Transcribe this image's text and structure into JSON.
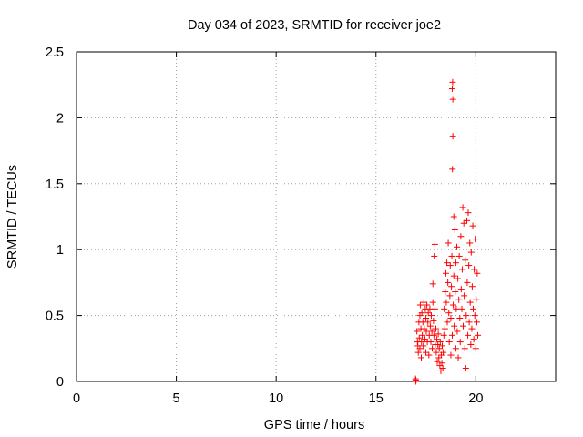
{
  "chart_data": {
    "type": "scatter",
    "title": "Day 034 of 2023, SRMTID for receiver joe2",
    "xlabel": "GPS time / hours",
    "ylabel": "SRMTID / TECUs",
    "xlim": [
      0,
      24
    ],
    "ylim": [
      0,
      2.5
    ],
    "xticks": [
      0,
      5,
      10,
      15,
      20
    ],
    "yticks": [
      0,
      0.5,
      1,
      1.5,
      2,
      2.5
    ],
    "xtick_labels": [
      "0",
      "5",
      "10",
      "15",
      "20"
    ],
    "ytick_labels": [
      "0",
      "0.5",
      "1",
      "1.5",
      "2",
      "2.5"
    ],
    "grid": true,
    "marker": "+",
    "color": "#ff0000",
    "series": [
      {
        "name": "SRMTID",
        "points": [
          [
            17.0,
            0.0
          ],
          [
            17.0,
            0.01
          ],
          [
            16.98,
            0.02
          ],
          [
            17.05,
            0.38
          ],
          [
            17.08,
            0.3
          ],
          [
            17.1,
            0.27
          ],
          [
            17.12,
            0.22
          ],
          [
            17.15,
            0.45
          ],
          [
            17.17,
            0.33
          ],
          [
            17.2,
            0.25
          ],
          [
            17.2,
            0.5
          ],
          [
            17.22,
            0.58
          ],
          [
            17.25,
            0.4
          ],
          [
            17.27,
            0.18
          ],
          [
            17.28,
            0.3
          ],
          [
            17.3,
            0.52
          ],
          [
            17.32,
            0.35
          ],
          [
            17.35,
            0.45
          ],
          [
            17.37,
            0.27
          ],
          [
            17.4,
            0.6
          ],
          [
            17.42,
            0.4
          ],
          [
            17.45,
            0.32
          ],
          [
            17.47,
            0.55
          ],
          [
            17.5,
            0.22
          ],
          [
            17.5,
            0.48
          ],
          [
            17.52,
            0.38
          ],
          [
            17.55,
            0.58
          ],
          [
            17.57,
            0.3
          ],
          [
            17.6,
            0.45
          ],
          [
            17.62,
            0.52
          ],
          [
            17.65,
            0.2
          ],
          [
            17.67,
            0.35
          ],
          [
            17.7,
            0.55
          ],
          [
            17.72,
            0.42
          ],
          [
            17.75,
            0.3
          ],
          [
            17.77,
            0.5
          ],
          [
            17.8,
            0.38
          ],
          [
            17.82,
            0.25
          ],
          [
            17.85,
            0.6
          ],
          [
            17.85,
            0.74
          ],
          [
            17.88,
            0.46
          ],
          [
            17.9,
            0.35
          ],
          [
            17.92,
            0.95
          ],
          [
            17.95,
            1.04
          ],
          [
            17.95,
            0.55
          ],
          [
            17.97,
            0.28
          ],
          [
            18.0,
            0.4
          ],
          [
            18.02,
            0.22
          ],
          [
            18.05,
            0.32
          ],
          [
            18.07,
            0.15
          ],
          [
            18.1,
            0.28
          ],
          [
            18.12,
            0.36
          ],
          [
            18.15,
            0.18
          ],
          [
            18.17,
            0.25
          ],
          [
            18.2,
            0.12
          ],
          [
            18.22,
            0.3
          ],
          [
            18.25,
            0.08
          ],
          [
            18.27,
            0.2
          ],
          [
            18.3,
            0.14
          ],
          [
            18.32,
            0.27
          ],
          [
            18.35,
            0.1
          ],
          [
            18.37,
            0.22
          ],
          [
            18.4,
            0.35
          ],
          [
            18.42,
            0.55
          ],
          [
            18.45,
            0.4
          ],
          [
            18.47,
            0.68
          ],
          [
            18.5,
            0.82
          ],
          [
            18.52,
            0.6
          ],
          [
            18.55,
            0.9
          ],
          [
            18.57,
            0.45
          ],
          [
            18.6,
            0.75
          ],
          [
            18.62,
            1.05
          ],
          [
            18.65,
            0.52
          ],
          [
            18.67,
            0.3
          ],
          [
            18.7,
            0.65
          ],
          [
            18.72,
            0.88
          ],
          [
            18.75,
            0.48
          ],
          [
            18.75,
            0.2
          ],
          [
            18.78,
            0.72
          ],
          [
            18.8,
            0.95
          ],
          [
            18.82,
            0.35
          ],
          [
            18.82,
            2.22
          ],
          [
            18.84,
            2.27
          ],
          [
            18.85,
            2.14
          ],
          [
            18.85,
            1.86
          ],
          [
            18.83,
            1.61
          ],
          [
            18.87,
            0.58
          ],
          [
            18.9,
            1.25
          ],
          [
            18.9,
            0.8
          ],
          [
            18.92,
            0.42
          ],
          [
            18.95,
            1.15
          ],
          [
            18.97,
            0.68
          ],
          [
            19.0,
            0.9
          ],
          [
            19.0,
            0.25
          ],
          [
            19.02,
            0.55
          ],
          [
            19.05,
            1.02
          ],
          [
            19.07,
            0.38
          ],
          [
            19.1,
            0.78
          ],
          [
            19.12,
            0.18
          ],
          [
            19.15,
            0.62
          ],
          [
            19.17,
            0.95
          ],
          [
            19.2,
            0.48
          ],
          [
            19.22,
            0.3
          ],
          [
            19.25,
            1.1
          ],
          [
            19.27,
            0.7
          ],
          [
            19.3,
            0.55
          ],
          [
            19.32,
            0.85
          ],
          [
            19.35,
            1.32
          ],
          [
            19.37,
            0.42
          ],
          [
            19.4,
            1.2
          ],
          [
            19.42,
            0.65
          ],
          [
            19.45,
            0.25
          ],
          [
            19.47,
            0.92
          ],
          [
            19.5,
            0.1
          ],
          [
            19.52,
            0.5
          ],
          [
            19.55,
            1.22
          ],
          [
            19.57,
            0.75
          ],
          [
            19.6,
            0.35
          ],
          [
            19.62,
            1.28
          ],
          [
            19.65,
            0.88
          ],
          [
            19.67,
            0.45
          ],
          [
            19.7,
            1.05
          ],
          [
            19.72,
            0.6
          ],
          [
            19.75,
            0.28
          ],
          [
            19.77,
            0.98
          ],
          [
            19.8,
            0.4
          ],
          [
            19.82,
            0.72
          ],
          [
            19.85,
            1.18
          ],
          [
            19.87,
            0.55
          ],
          [
            19.9,
            0.32
          ],
          [
            19.92,
            0.85
          ],
          [
            19.95,
            0.5
          ],
          [
            19.97,
            1.08
          ],
          [
            20.0,
            0.25
          ],
          [
            20.02,
            0.62
          ],
          [
            20.05,
            0.45
          ],
          [
            20.07,
            0.82
          ],
          [
            20.1,
            0.35
          ]
        ]
      }
    ]
  }
}
